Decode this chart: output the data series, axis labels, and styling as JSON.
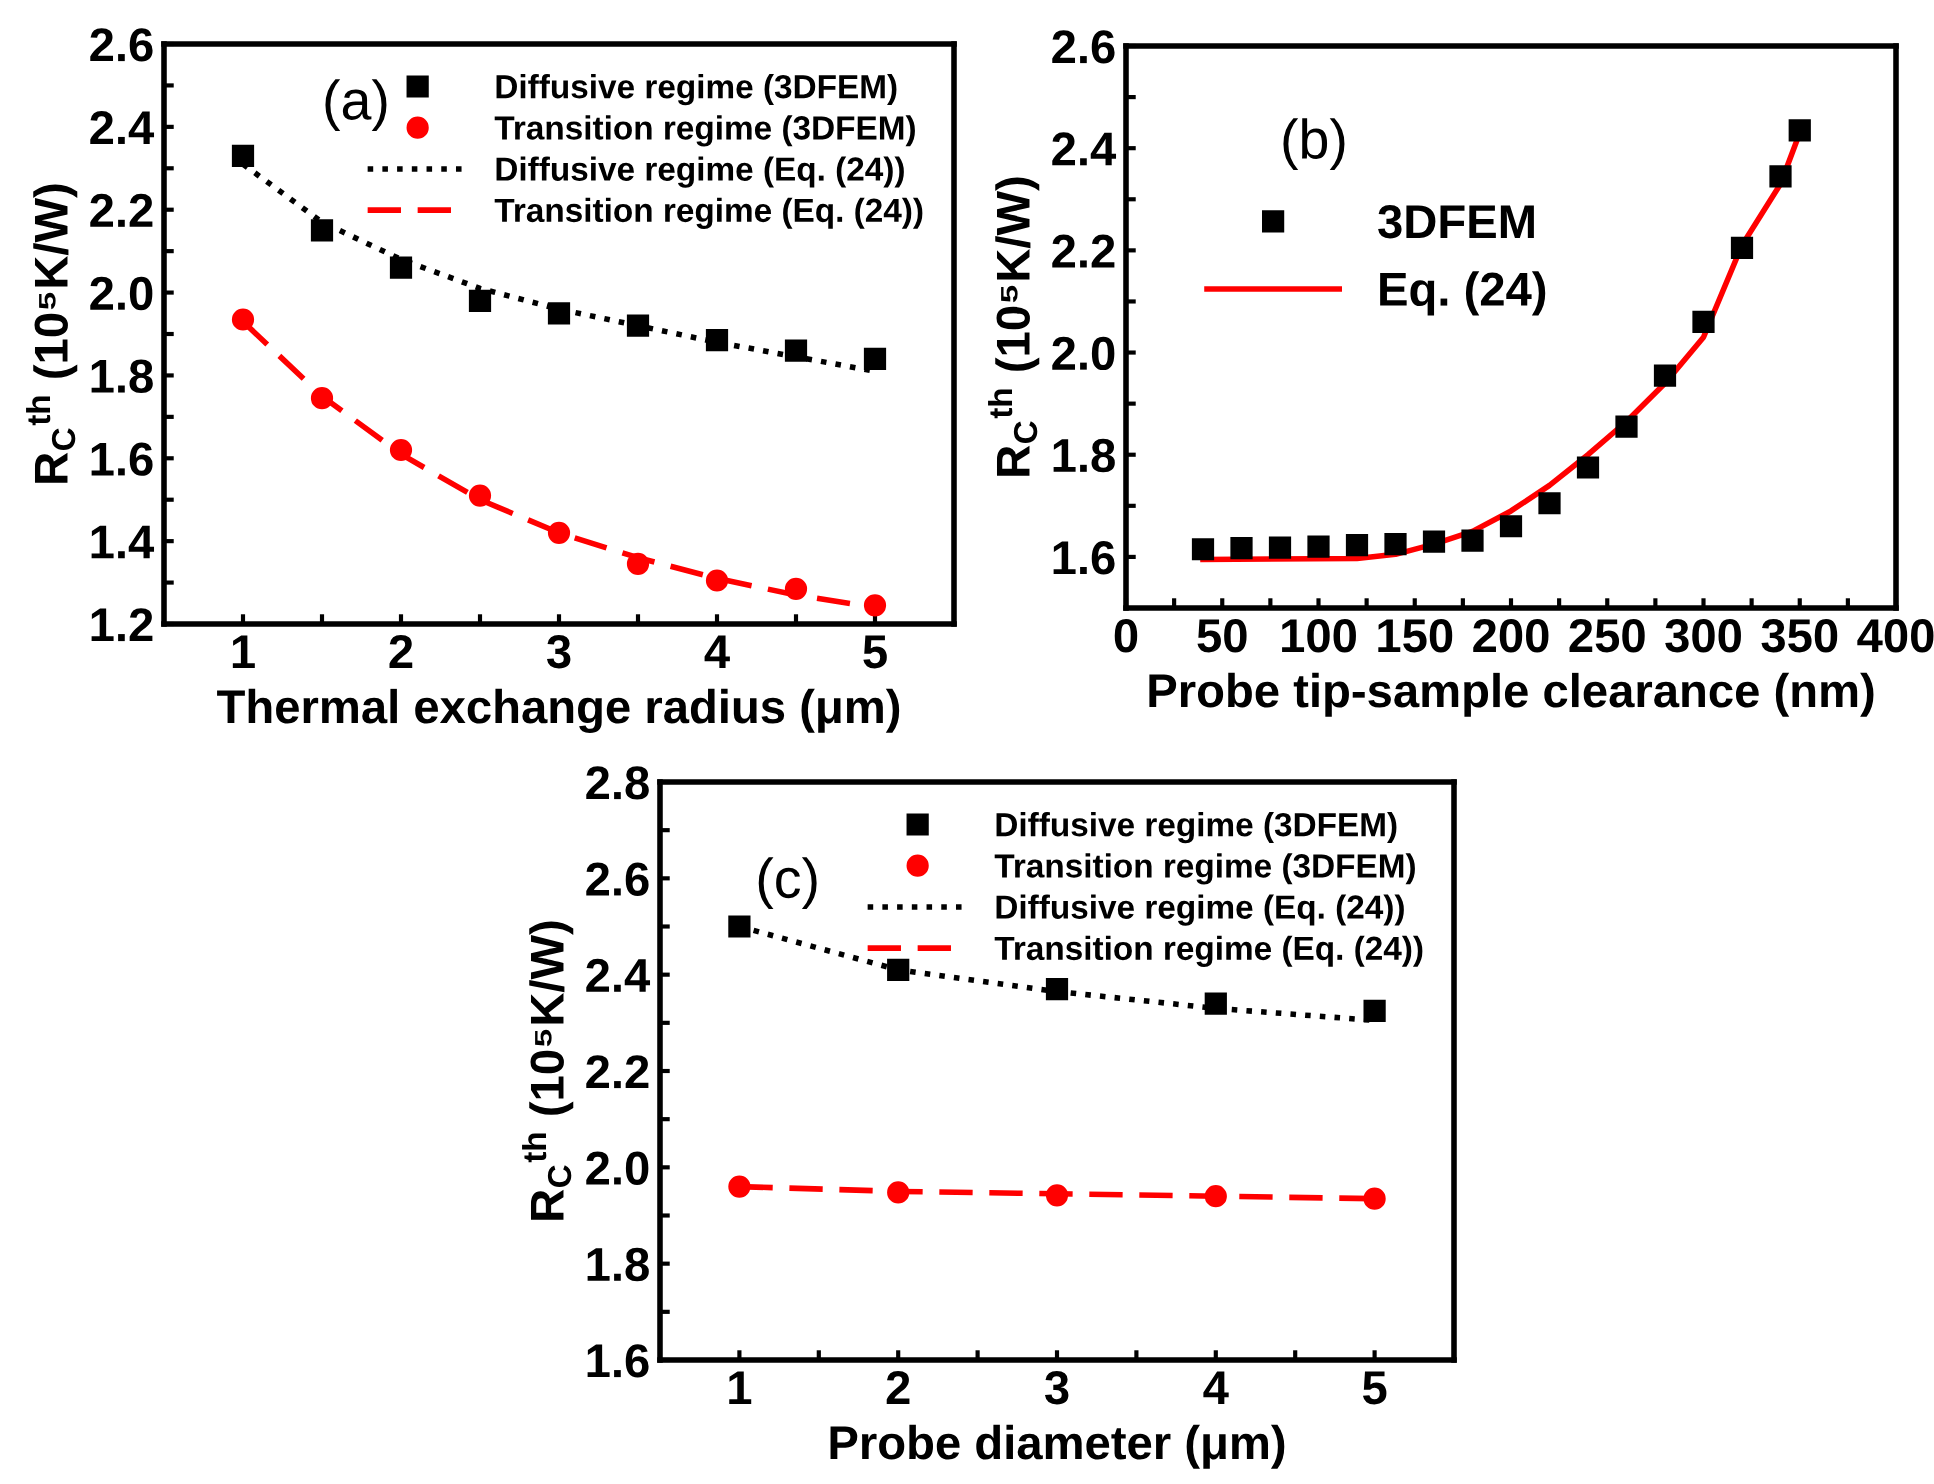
{
  "chart_data": [
    {
      "type": "scatter",
      "x": [
        1,
        1.5,
        2,
        2.5,
        3,
        3.5,
        4,
        4.5,
        5
      ],
      "xlabel": "Thermal exchange radius (μm)",
      "ylabel": "R$_{C}$$^{th}$ (10⁵K/W)",
      "annotations": [
        "(a)"
      ],
      "legend": "top right",
      "xlim": [
        0.5,
        5.5
      ],
      "ylim": [
        1.2,
        2.6
      ],
      "xticks": [
        1,
        {
          "value": 1.5,
          "label": null
        },
        2,
        {
          "value": 2.5,
          "label": null
        },
        3,
        {
          "value": 3.5,
          "label": null
        },
        4,
        {
          "value": 4.5,
          "label": null
        },
        5
      ],
      "yticks": [
        {
          "value": 1.2,
          "label": "1.2"
        },
        {
          "value": 1.3,
          "label": null
        },
        {
          "value": 1.4,
          "label": "1.4"
        },
        {
          "value": 1.5,
          "label": null
        },
        {
          "value": 1.6,
          "label": "1.6"
        },
        {
          "value": 1.7,
          "label": null
        },
        {
          "value": 1.8,
          "label": "1.8"
        },
        {
          "value": 1.9,
          "label": null
        },
        {
          "value": 2.0,
          "label": "2.0"
        },
        {
          "value": 2.1,
          "label": null
        },
        {
          "value": 2.2,
          "label": "2.2"
        },
        {
          "value": 2.3,
          "label": null
        },
        {
          "value": 2.4,
          "label": "2.4"
        },
        {
          "value": 2.5,
          "label": null
        },
        {
          "value": 2.6,
          "label": "2.6"
        }
      ],
      "series": [
        {
          "name": "Diffusive regime (3DFEM)",
          "marker": "square",
          "color": "#000000",
          "values": [
            2.33,
            2.15,
            2.06,
            1.98,
            1.95,
            1.92,
            1.885,
            1.86,
            1.84
          ]
        },
        {
          "name": "Transition regime (3DFEM)",
          "marker": "circle",
          "color": "#ff0000",
          "values": [
            1.935,
            1.745,
            1.62,
            1.51,
            1.42,
            1.345,
            1.305,
            1.285,
            1.245
          ]
        },
        {
          "name": "Diffusive regime (Eq. (24))",
          "type": "line",
          "line_style": "dotted",
          "color": "#000000",
          "values": [
            2.31,
            2.17,
            2.08,
            2.01,
            1.96,
            1.92,
            1.88,
            1.845,
            1.81
          ]
        },
        {
          "name": "Transition regime (Eq. (24))",
          "type": "line",
          "line_style": "dashed",
          "color": "#ff0000",
          "values": [
            1.93,
            1.75,
            1.61,
            1.5,
            1.42,
            1.36,
            1.31,
            1.27,
            1.24
          ]
        }
      ]
    },
    {
      "type": "scatter",
      "xlabel": "Probe tip-sample clearance (nm)",
      "ylabel": "R$_{C}$$^{th}$ (10⁵K/W)",
      "annotations": [
        "(b)"
      ],
      "legend": "left",
      "xlim": [
        0,
        400
      ],
      "ylim": [
        1.5,
        2.6
      ],
      "xticks": [
        0,
        {
          "value": 25,
          "label": null
        },
        50,
        {
          "value": 75,
          "label": null
        },
        100,
        {
          "value": 125,
          "label": null
        },
        150,
        {
          "value": 175,
          "label": null
        },
        200,
        {
          "value": 225,
          "label": null
        },
        250,
        {
          "value": 275,
          "label": null
        },
        300,
        {
          "value": 325,
          "label": null
        },
        350,
        {
          "value": 375,
          "label": null
        },
        400
      ],
      "yticks": [
        {
          "value": 1.6,
          "label": "1.6"
        },
        {
          "value": 1.7,
          "label": null
        },
        {
          "value": 1.8,
          "label": "1.8"
        },
        {
          "value": 1.9,
          "label": null
        },
        {
          "value": 2.0,
          "label": "2.0"
        },
        {
          "value": 2.1,
          "label": null
        },
        {
          "value": 2.2,
          "label": "2.2"
        },
        {
          "value": 2.3,
          "label": null
        },
        {
          "value": 2.4,
          "label": "2.4"
        },
        {
          "value": 2.5,
          "label": null
        },
        {
          "value": 2.6,
          "label": "2.6"
        }
      ],
      "series": [
        {
          "name": "3DFEM",
          "marker": "square",
          "color": "#000000",
          "x": [
            40,
            60,
            80,
            100,
            120,
            140,
            160,
            180,
            200,
            220,
            240,
            260,
            280,
            300,
            320,
            340,
            350
          ],
          "values": [
            1.615,
            1.617,
            1.618,
            1.62,
            1.623,
            1.625,
            1.63,
            1.632,
            1.66,
            1.705,
            1.775,
            1.855,
            1.955,
            2.06,
            2.205,
            2.345,
            2.435
          ]
        },
        {
          "name": "Eq. (24)",
          "type": "line",
          "line_style": "solid",
          "color": "#ff0000",
          "x": [
            40,
            120,
            140,
            160,
            180,
            200,
            220,
            240,
            260,
            280,
            300,
            320,
            340,
            350
          ],
          "values": [
            1.595,
            1.597,
            1.605,
            1.625,
            1.65,
            1.69,
            1.74,
            1.8,
            1.865,
            1.94,
            2.03,
            2.21,
            2.33,
            2.43
          ]
        }
      ]
    },
    {
      "type": "scatter",
      "x": [
        1,
        2,
        3,
        4,
        5
      ],
      "xlabel": "Probe diameter (μm)",
      "ylabel": "R$_{C}$$^{th}$ (10⁵K/W)",
      "annotations": [
        "(c)"
      ],
      "legend": "top right",
      "xlim": [
        0.5,
        5.5
      ],
      "ylim": [
        1.6,
        2.8
      ],
      "xticks": [
        1,
        {
          "value": 1.5,
          "label": null
        },
        2,
        {
          "value": 2.5,
          "label": null
        },
        3,
        {
          "value": 3.5,
          "label": null
        },
        4,
        {
          "value": 4.5,
          "label": null
        },
        5
      ],
      "yticks": [
        {
          "value": 1.6,
          "label": "1.6"
        },
        {
          "value": 1.7,
          "label": null
        },
        {
          "value": 1.8,
          "label": "1.8"
        },
        {
          "value": 1.9,
          "label": null
        },
        {
          "value": 2.0,
          "label": "2.0"
        },
        {
          "value": 2.1,
          "label": null
        },
        {
          "value": 2.2,
          "label": "2.2"
        },
        {
          "value": 2.3,
          "label": null
        },
        {
          "value": 2.4,
          "label": "2.4"
        },
        {
          "value": 2.5,
          "label": null
        },
        {
          "value": 2.6,
          "label": "2.6"
        },
        {
          "value": 2.7,
          "label": null
        },
        {
          "value": 2.8,
          "label": "2.8"
        }
      ],
      "series": [
        {
          "name": "Diffusive regime (3DFEM)",
          "marker": "square",
          "color": "#000000",
          "values": [
            2.5,
            2.41,
            2.37,
            2.34,
            2.325
          ]
        },
        {
          "name": "Transition regime (3DFEM)",
          "marker": "circle",
          "color": "#ff0000",
          "values": [
            1.96,
            1.948,
            1.942,
            1.94,
            1.935
          ]
        },
        {
          "name": "Diffusive regime (Eq. (24))",
          "type": "line",
          "line_style": "dotted",
          "color": "#000000",
          "values": [
            2.5,
            2.41,
            2.365,
            2.33,
            2.305
          ]
        },
        {
          "name": "Transition regime (Eq. (24))",
          "type": "line",
          "line_style": "dashed",
          "color": "#ff0000",
          "values": [
            1.96,
            1.95,
            1.945,
            1.94,
            1.935
          ]
        }
      ]
    }
  ]
}
